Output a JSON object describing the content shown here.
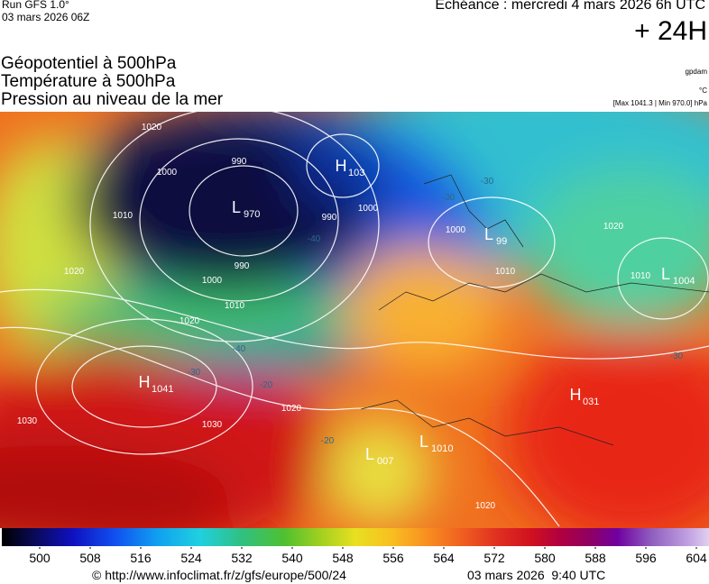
{
  "header": {
    "run": "Run GFS 1.0°",
    "run_date": "03 mars 2026 06Z",
    "echeance": "Echéance : mercredi 4 mars 2026 6h UTC",
    "lead": "+ 24H"
  },
  "titles": [
    "Géopotentiel à 500hPa",
    "Température à 500hPa",
    "Pression au niveau de la mer"
  ],
  "units": [
    "gpdam",
    "°C",
    "[Max 1041.3 | Min 970.0] hPa"
  ],
  "map": {
    "centers": [
      {
        "kind": "H",
        "value": "1041"
      },
      {
        "kind": "L",
        "value": "970"
      },
      {
        "kind": "H",
        "value": "103"
      },
      {
        "kind": "L",
        "value": "99"
      },
      {
        "kind": "L",
        "value": "1004"
      },
      {
        "kind": "L",
        "value": "007"
      },
      {
        "kind": "L",
        "value": "1010"
      },
      {
        "kind": "H",
        "value": "031"
      }
    ],
    "isobar_labels": [
      "1020",
      "1000",
      "990",
      "1010",
      "1020",
      "1000",
      "990",
      "1010",
      "1020",
      "1000",
      "990",
      "1000",
      "1010",
      "1020",
      "1010",
      "1020",
      "1030",
      "1030",
      "1020"
    ],
    "temperature_labels": [
      "-30",
      "-30",
      "-40",
      "-40",
      "-30",
      "-20",
      "-20",
      "-30"
    ]
  },
  "colorbar": {
    "range": [
      494,
      606
    ],
    "ticks": [
      500,
      508,
      516,
      524,
      532,
      540,
      548,
      556,
      564,
      572,
      580,
      588,
      596,
      604
    ]
  },
  "footer": {
    "url": "© http://www.infoclimat.fr/z/gfs/europe/500/24",
    "timestamp": "03 mars 2026  9:40 UTC"
  }
}
